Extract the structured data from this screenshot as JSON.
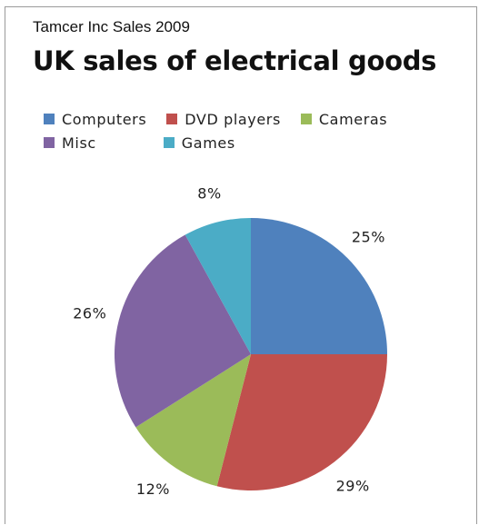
{
  "chart_data": {
    "type": "pie",
    "subtitle": "Tamcer Inc Sales 2009",
    "title": "UK sales of electrical goods",
    "legend_placement": "top",
    "categories": [
      "Computers",
      "DVD players",
      "Cameras",
      "Misc",
      "Games"
    ],
    "values": [
      25,
      29,
      12,
      26,
      8
    ],
    "data_labels": [
      "25%",
      "29%",
      "12%",
      "26%",
      "8%"
    ],
    "colors": [
      "#4f81bd",
      "#c0504d",
      "#9bbb59",
      "#8064a2",
      "#4bacc6"
    ]
  }
}
